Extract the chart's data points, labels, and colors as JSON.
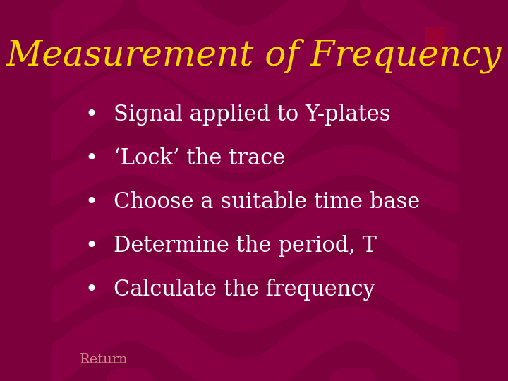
{
  "title": "Measurement of Frequency",
  "title_color": "#FFD700",
  "title_fontsize": 36,
  "bullet_points": [
    "Signal applied to Y-plates",
    "‘Lock’ the trace",
    "Choose a suitable time base",
    "Determine the period, T",
    "Calculate the frequency"
  ],
  "bullet_color": "#FFFFFF",
  "bullet_fontsize": 22,
  "bullet_symbol": "•",
  "footer_text": "Return",
  "footer_color": "#CC8888",
  "bg_color_main": "#7B003C",
  "wave_color": "#8B0045",
  "small_rect_color": "#990033"
}
